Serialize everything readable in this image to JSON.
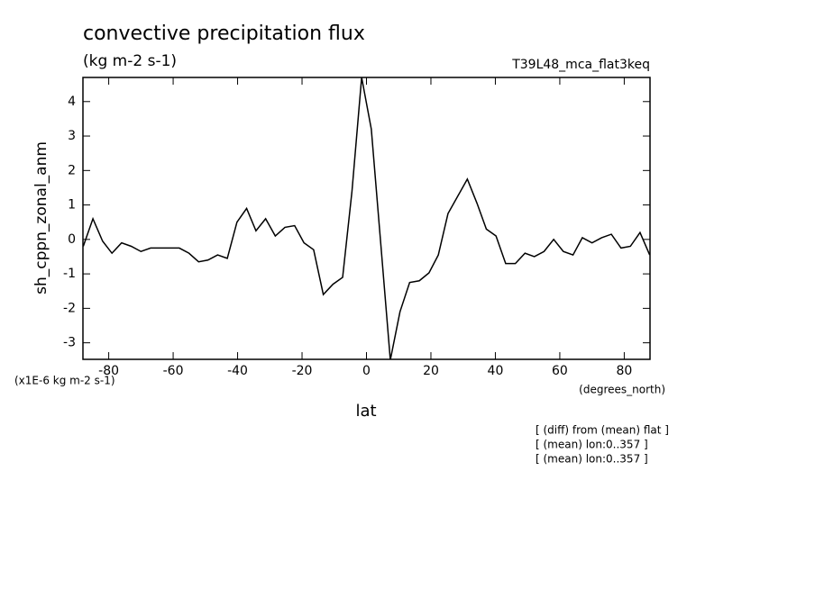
{
  "chart_data": {
    "type": "line",
    "title": "convective precipitation flux",
    "subtitle": "(kg m-2 s-1)",
    "run_label": "T39L48_mca_flat3keq",
    "ylabel": "sh_cppn_zonal_anm",
    "y_scale_label": "(x1E-6 kg m-2 s-1)",
    "x_units": "(degrees_north)",
    "xlabel": "lat",
    "notes": [
      "[ (diff) from (mean) flat ]",
      "[ (mean) lon:0..357 ]",
      "[ (mean) lon:0..357 ]"
    ],
    "x": [
      -87.9,
      -84.9,
      -81.9,
      -79.0,
      -76.0,
      -73.0,
      -70.0,
      -67.0,
      -64.1,
      -61.1,
      -58.1,
      -55.1,
      -52.1,
      -49.2,
      -46.2,
      -43.2,
      -40.2,
      -37.2,
      -34.3,
      -31.3,
      -28.3,
      -25.3,
      -22.3,
      -19.4,
      -16.4,
      -13.4,
      -10.4,
      -7.4,
      -4.5,
      -1.5,
      1.5,
      4.5,
      7.4,
      10.4,
      13.4,
      16.4,
      19.4,
      22.3,
      25.3,
      28.3,
      31.3,
      34.3,
      37.2,
      40.2,
      43.2,
      46.2,
      49.2,
      52.1,
      55.1,
      58.1,
      61.1,
      64.1,
      67.0,
      70.0,
      73.0,
      76.0,
      79.0,
      81.9,
      84.9,
      87.9
    ],
    "series": [
      {
        "color": "#000000",
        "values": [
          -0.2,
          0.6,
          -0.05,
          -0.4,
          -0.1,
          -0.2,
          -0.35,
          -0.25,
          -0.25,
          -0.25,
          -0.25,
          -0.4,
          -0.65,
          -0.6,
          -0.45,
          -0.55,
          0.5,
          0.9,
          0.25,
          0.6,
          0.1,
          0.35,
          0.4,
          -0.1,
          -0.3,
          -1.6,
          -1.3,
          -1.1,
          1.4,
          4.7,
          3.2,
          -0.2,
          -3.5,
          -2.1,
          -1.25,
          -1.2,
          -0.97,
          -0.45,
          0.75,
          1.25,
          1.75,
          1.05,
          0.3,
          0.1,
          -0.7,
          -0.7,
          -0.4,
          -0.5,
          -0.35,
          0,
          -0.35,
          -0.45,
          0.05,
          -0.1,
          0.05,
          0.15,
          -0.25,
          -0.2,
          0.2,
          -0.45
        ]
      }
    ],
    "xlim": [
      -88,
      88
    ],
    "ylim": [
      -3.48,
      4.7
    ],
    "xticks": [
      -80,
      -60,
      -40,
      -20,
      0,
      20,
      40,
      60,
      80
    ],
    "yticks": [
      -3,
      -2,
      -1,
      0,
      1,
      2,
      3,
      4
    ]
  }
}
